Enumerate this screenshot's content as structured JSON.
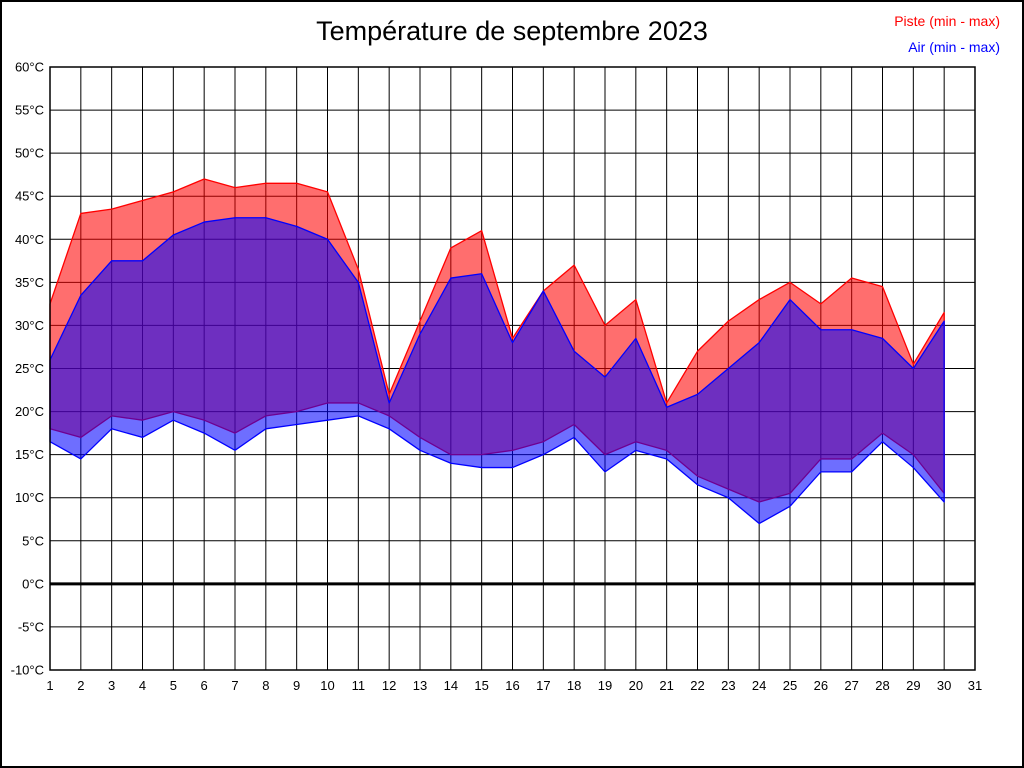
{
  "title": "Température de septembre 2023",
  "legend": {
    "position": "top-right",
    "items": [
      {
        "label": "Piste (min - max)",
        "color": "#ff0000"
      },
      {
        "label": "Air (min - max)",
        "color": "#0000ff"
      }
    ]
  },
  "chart_data": {
    "type": "area",
    "title": "Température de septembre 2023",
    "xlabel": "",
    "ylabel": "",
    "x_ticks": [
      1,
      2,
      3,
      4,
      5,
      6,
      7,
      8,
      9,
      10,
      11,
      12,
      13,
      14,
      15,
      16,
      17,
      18,
      19,
      20,
      21,
      22,
      23,
      24,
      25,
      26,
      27,
      28,
      29,
      30,
      31
    ],
    "y_tick_values": [
      60,
      55,
      50,
      45,
      40,
      35,
      30,
      25,
      20,
      15,
      10,
      5,
      0,
      -5,
      -10
    ],
    "y_unit": "°C",
    "xlim": [
      1,
      31
    ],
    "ylim": [
      -10,
      60
    ],
    "grid": true,
    "zero_line": true,
    "days": [
      1,
      2,
      3,
      4,
      5,
      6,
      7,
      8,
      9,
      10,
      11,
      12,
      13,
      14,
      15,
      16,
      17,
      18,
      19,
      20,
      21,
      22,
      23,
      24,
      25,
      26,
      27,
      28,
      29,
      30
    ],
    "series": [
      {
        "name": "Piste (min - max)",
        "color": "#ff0000",
        "fill_alpha": 0.57,
        "max": [
          32.5,
          43,
          43.5,
          44.5,
          45.5,
          47,
          46,
          46.5,
          46.5,
          45.5,
          36.5,
          22,
          30.5,
          39,
          41,
          28.5,
          34,
          37,
          30,
          33,
          21,
          27,
          30.5,
          33,
          35,
          32.5,
          35.5,
          34.5,
          25.5,
          31.5
        ],
        "min": [
          18,
          17,
          19.5,
          19,
          20,
          19,
          17.5,
          19.5,
          20,
          21,
          21,
          19.5,
          17,
          15,
          15,
          15.5,
          16.5,
          18.5,
          15,
          16.5,
          15.5,
          12.5,
          11,
          9.5,
          10.5,
          14.5,
          14.5,
          17.5,
          15,
          10.5
        ]
      },
      {
        "name": "Air (min - max)",
        "color": "#0000ff",
        "fill_alpha": 0.57,
        "max": [
          26,
          33.5,
          37.5,
          37.5,
          40.5,
          42,
          42.5,
          42.5,
          41.5,
          40,
          35,
          21,
          29,
          35.5,
          36,
          28,
          34,
          27,
          24,
          28.5,
          20.5,
          22,
          25,
          28,
          33,
          29.5,
          29.5,
          28.5,
          25,
          30.5
        ],
        "min": [
          16.5,
          14.5,
          18,
          17,
          19,
          17.5,
          15.5,
          18,
          18.5,
          19,
          19.5,
          18,
          15.5,
          14,
          13.5,
          13.5,
          15,
          17,
          13,
          15.5,
          14.5,
          11.5,
          10,
          7,
          9,
          13,
          13,
          16.5,
          13.5,
          9.5
        ]
      }
    ]
  }
}
